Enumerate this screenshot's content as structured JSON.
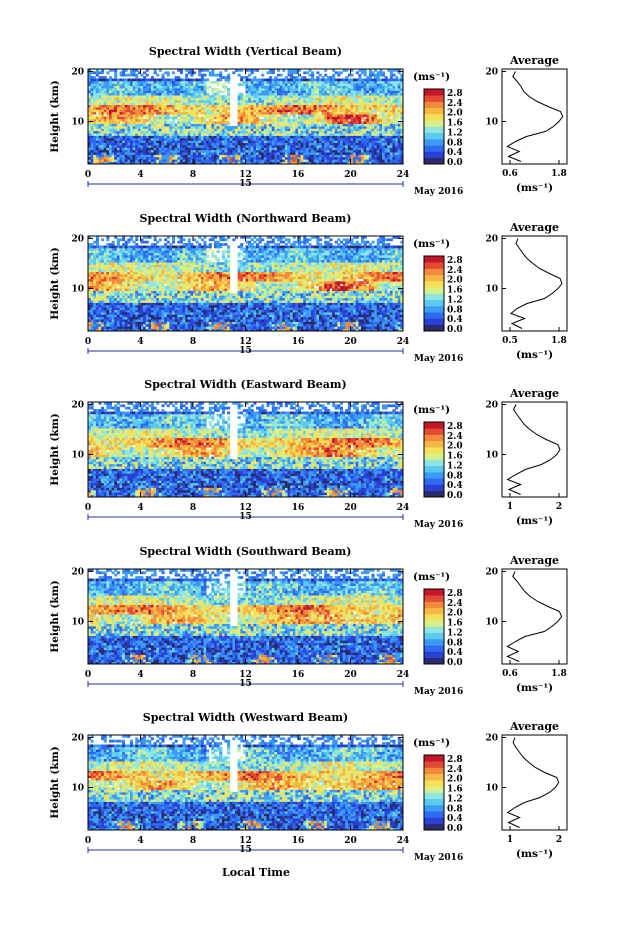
{
  "figure": {
    "xlabel": "Local Time",
    "day_label": "15",
    "date_label": "May 2016",
    "ylabel": "Height (km)",
    "colorbar_unit": "(ms⁻¹)",
    "profile_title": "Average",
    "profile_unit": "(ms⁻¹)"
  },
  "colormap": [
    "#2b2b6b",
    "#2a3fd6",
    "#2e6bf0",
    "#3c9cf5",
    "#5ccaf0",
    "#8fe6e0",
    "#d8f08c",
    "#f5e05a",
    "#f5b844",
    "#f28a3c",
    "#e24a34",
    "#c4162a"
  ],
  "chart_data": [
    {
      "type": "heatmap",
      "title": "Spectral Width (Vertical Beam)",
      "xlabel": "Local Time",
      "ylabel": "Height (km)",
      "xlim": [
        0,
        24
      ],
      "ylim": [
        1.5,
        20.5
      ],
      "xticks": [
        0,
        4,
        8,
        12,
        16,
        20,
        24
      ],
      "yticks": [
        10,
        20
      ],
      "colorbar": {
        "label": "(ms⁻¹)",
        "range": [
          0.0,
          2.8
        ],
        "ticks": [
          "2.8",
          "2.4",
          "2.0",
          "1.6",
          "1.2",
          "0.8",
          "0.4",
          "0.0"
        ]
      },
      "average_profile": {
        "title": "Average",
        "xlabel": "(ms⁻¹)",
        "xlim": [
          0.6,
          1.8
        ],
        "xticks": [
          "0.6",
          "1.8"
        ],
        "height_km": [
          2,
          3,
          4,
          5,
          6,
          7,
          8,
          9,
          10,
          11,
          12,
          13,
          14,
          15,
          16,
          17,
          18,
          19,
          20
        ],
        "width": [
          0.95,
          0.72,
          0.92,
          0.7,
          0.85,
          1.05,
          1.4,
          1.55,
          1.65,
          1.72,
          1.68,
          1.45,
          1.25,
          1.1,
          1.0,
          0.95,
          0.88,
          0.8,
          0.85
        ]
      }
    },
    {
      "type": "heatmap",
      "title": "Spectral Width (Northward Beam)",
      "xlabel": "Local Time",
      "ylabel": "Height (km)",
      "xlim": [
        0,
        24
      ],
      "ylim": [
        1.5,
        20.5
      ],
      "xticks": [
        0,
        4,
        8,
        12,
        16,
        20,
        24
      ],
      "yticks": [
        10,
        20
      ],
      "colorbar": {
        "label": "(ms⁻¹)",
        "range": [
          0.0,
          2.8
        ],
        "ticks": [
          "2.8",
          "2.4",
          "2.0",
          "1.6",
          "1.2",
          "0.8",
          "0.4",
          "0.0"
        ]
      },
      "average_profile": {
        "title": "Average",
        "xlabel": "(ms⁻¹)",
        "xlim": [
          0.5,
          1.8
        ],
        "xticks": [
          "0.5",
          "1.8"
        ],
        "height_km": [
          2,
          3,
          4,
          5,
          6,
          7,
          8,
          9,
          10,
          11,
          12,
          13,
          14,
          15,
          16,
          17,
          18,
          19,
          20
        ],
        "width": [
          0.9,
          0.7,
          0.95,
          0.68,
          0.8,
          1.0,
          1.35,
          1.5,
          1.62,
          1.7,
          1.66,
          1.45,
          1.25,
          1.12,
          1.0,
          0.92,
          0.85,
          0.78,
          0.82
        ]
      }
    },
    {
      "type": "heatmap",
      "title": "Spectral Width (Eastward Beam)",
      "xlabel": "Local Time",
      "ylabel": "Height (km)",
      "xlim": [
        0,
        24
      ],
      "ylim": [
        1.5,
        20.5
      ],
      "xticks": [
        0,
        4,
        8,
        12,
        16,
        20,
        24
      ],
      "yticks": [
        10,
        20
      ],
      "colorbar": {
        "label": "(ms⁻¹)",
        "range": [
          0.0,
          2.8
        ],
        "ticks": [
          "2.8",
          "2.4",
          "2.0",
          "1.6",
          "1.2",
          "0.8",
          "0.4",
          "0.0"
        ]
      },
      "average_profile": {
        "title": "Average",
        "xlabel": "(ms⁻¹)",
        "xlim": [
          0.6,
          2.0
        ],
        "xticks": [
          "1",
          "2"
        ],
        "height_km": [
          2,
          3,
          4,
          5,
          6,
          7,
          8,
          9,
          10,
          11,
          12,
          13,
          14,
          15,
          16,
          17,
          18,
          19,
          20
        ],
        "width": [
          1.0,
          0.75,
          1.0,
          0.72,
          0.9,
          1.1,
          1.45,
          1.65,
          1.78,
          1.85,
          1.8,
          1.55,
          1.35,
          1.2,
          1.08,
          1.0,
          0.92,
          0.85,
          0.9
        ]
      }
    },
    {
      "type": "heatmap",
      "title": "Spectral Width (Southward Beam)",
      "xlabel": "Local Time",
      "ylabel": "Height (km)",
      "xlim": [
        0,
        24
      ],
      "ylim": [
        1.5,
        20.5
      ],
      "xticks": [
        0,
        4,
        8,
        12,
        16,
        20,
        24
      ],
      "yticks": [
        10,
        20
      ],
      "colorbar": {
        "label": "(ms⁻¹)",
        "range": [
          0.0,
          2.8
        ],
        "ticks": [
          "2.8",
          "2.4",
          "2.0",
          "1.6",
          "1.2",
          "0.8",
          "0.4",
          "0.0"
        ]
      },
      "average_profile": {
        "title": "Average",
        "xlabel": "(ms⁻¹)",
        "xlim": [
          0.6,
          1.8
        ],
        "xticks": [
          "0.6",
          "1.8"
        ],
        "height_km": [
          2,
          3,
          4,
          5,
          6,
          7,
          8,
          9,
          10,
          11,
          12,
          13,
          14,
          15,
          16,
          17,
          18,
          19,
          20
        ],
        "width": [
          0.92,
          0.7,
          0.9,
          0.7,
          0.85,
          1.02,
          1.38,
          1.52,
          1.63,
          1.7,
          1.66,
          1.45,
          1.26,
          1.12,
          1.02,
          0.95,
          0.88,
          0.8,
          0.84
        ]
      }
    },
    {
      "type": "heatmap",
      "title": "Spectral Width (Westward Beam)",
      "xlabel": "Local Time",
      "ylabel": "Height (km)",
      "xlim": [
        0,
        24
      ],
      "ylim": [
        1.5,
        20.5
      ],
      "xticks": [
        0,
        4,
        8,
        12,
        16,
        20,
        24
      ],
      "yticks": [
        10,
        20
      ],
      "colorbar": {
        "label": "(ms⁻¹)",
        "range": [
          0.0,
          2.8
        ],
        "ticks": [
          "2.8",
          "2.4",
          "2.0",
          "1.6",
          "1.2",
          "0.8",
          "0.4",
          "0.0"
        ]
      },
      "average_profile": {
        "title": "Average",
        "xlabel": "(ms⁻¹)",
        "xlim": [
          0.6,
          2.0
        ],
        "xticks": [
          "1",
          "2"
        ],
        "height_km": [
          2,
          3,
          4,
          5,
          6,
          7,
          8,
          9,
          10,
          11,
          12,
          13,
          14,
          15,
          16,
          17,
          18,
          19,
          20
        ],
        "width": [
          0.98,
          0.74,
          0.98,
          0.72,
          0.88,
          1.08,
          1.42,
          1.62,
          1.75,
          1.82,
          1.78,
          1.52,
          1.32,
          1.18,
          1.06,
          0.98,
          0.9,
          0.84,
          0.88
        ]
      }
    }
  ]
}
